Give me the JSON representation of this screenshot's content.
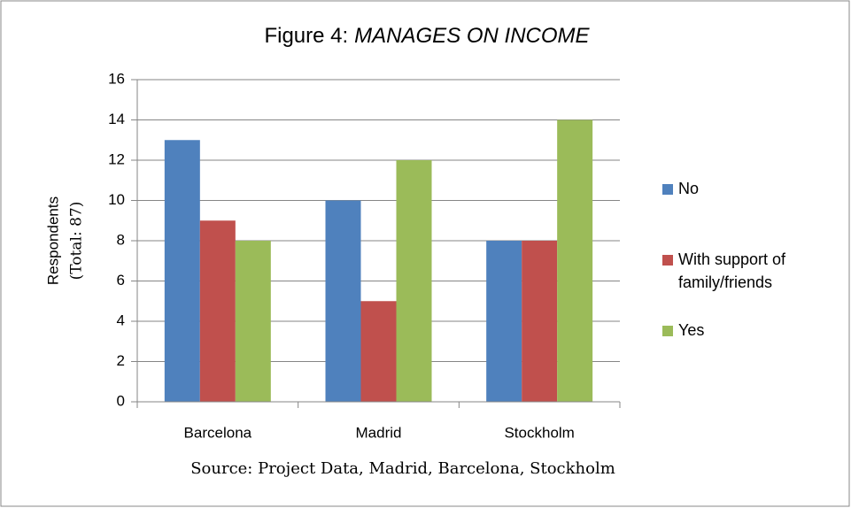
{
  "chart_data": {
    "type": "bar",
    "title": "Figure 4:",
    "title_emphasis": "MANAGES ON INCOME",
    "y_label": [
      "Respondents",
      "(Total: 87)"
    ],
    "source": "Source: Project Data, Madrid, Barcelona, Stockholm",
    "categories": [
      "Barcelona",
      "Madrid",
      "Stockholm"
    ],
    "series": [
      {
        "name": "No",
        "color": "#4f81bd",
        "values": [
          13,
          10,
          8
        ]
      },
      {
        "name": "With support of family/friends",
        "color": "#c0504d",
        "values": [
          9,
          5,
          8
        ]
      },
      {
        "name": "Yes",
        "color": "#9bbb59",
        "values": [
          8,
          12,
          14
        ]
      }
    ],
    "ylim": [
      0,
      16
    ],
    "yticks": [
      0,
      2,
      4,
      6,
      8,
      10,
      12,
      14,
      16
    ],
    "grid": true,
    "legend": "right"
  }
}
